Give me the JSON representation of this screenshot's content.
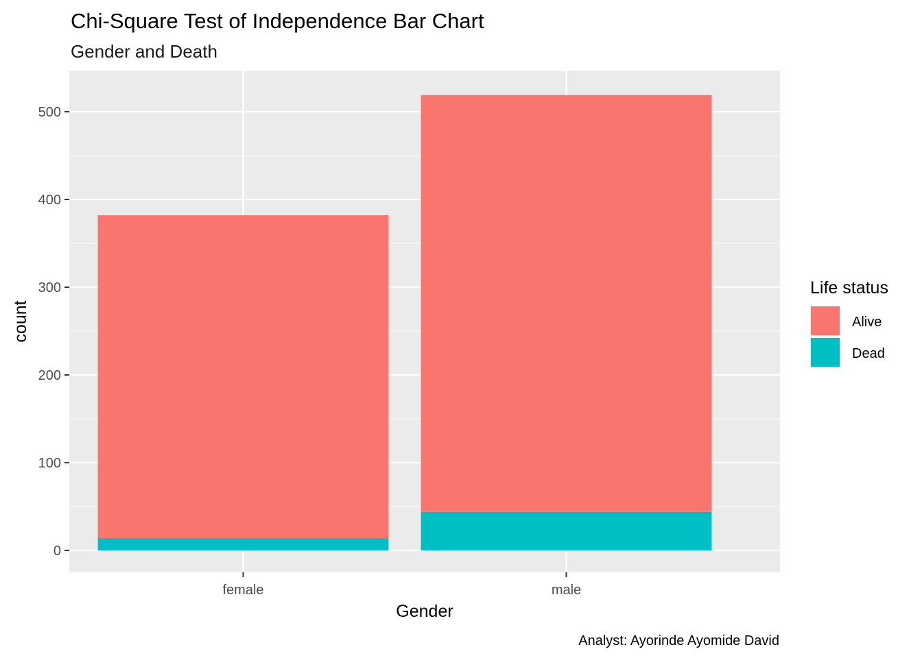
{
  "chart_data": {
    "type": "bar",
    "stacked": true,
    "title": "Chi-Square Test of Independence Bar Chart",
    "subtitle": "Gender and Death",
    "xlabel": "Gender",
    "ylabel": "count",
    "caption": "Analyst: Ayorinde Ayomide David",
    "categories": [
      "female",
      "male"
    ],
    "series": [
      {
        "name": "Alive",
        "color": "#F8766D",
        "values": [
          368,
          475
        ]
      },
      {
        "name": "Dead",
        "color": "#00BFC4",
        "values": [
          14,
          44
        ]
      }
    ],
    "ylim": [
      0,
      540
    ],
    "yticks": [
      0,
      100,
      200,
      300,
      400,
      500
    ],
    "grid": true,
    "panel_background": "#EBEBEB",
    "legend": {
      "title": "Life status",
      "position": "right"
    }
  }
}
